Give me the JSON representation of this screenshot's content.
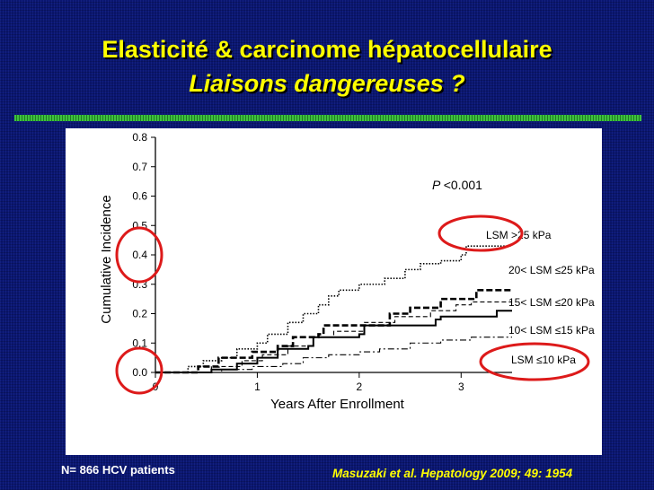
{
  "slide": {
    "title": "Elasticité & carcinome hépatocellulaire",
    "subtitle": "Liaisons dangereuses ?",
    "footer_left": "N= 866 HCV patients",
    "footer_right": "Masuzaki et al. Hepatology 2009; 49: 1954"
  },
  "colors": {
    "title": "#ffff00",
    "highlight_circle": "#dd1a1a",
    "background": "#0a1670"
  },
  "chart_data": {
    "type": "line",
    "xlabel": "Years After Enrollment",
    "ylabel": "Cumulative Incidence",
    "xlim": [
      0,
      3.5
    ],
    "ylim": [
      0,
      0.8
    ],
    "xticks": [
      "0",
      "1",
      "2",
      "3"
    ],
    "yticks": [
      "0.0",
      "0.1",
      "0.2",
      "0.3",
      "0.4",
      "0.5",
      "0.6",
      "0.7",
      "0.8"
    ],
    "annotation_p": "<0.001",
    "annotation_p_symbol": "P",
    "series": [
      {
        "name": "LSM >25 kPa",
        "style": "dotted",
        "points": [
          [
            0,
            0
          ],
          [
            0.3,
            0
          ],
          [
            0.32,
            0.02
          ],
          [
            0.45,
            0.02
          ],
          [
            0.47,
            0.04
          ],
          [
            0.65,
            0.05
          ],
          [
            0.8,
            0.08
          ],
          [
            1.0,
            0.1
          ],
          [
            1.1,
            0.13
          ],
          [
            1.3,
            0.17
          ],
          [
            1.45,
            0.2
          ],
          [
            1.6,
            0.23
          ],
          [
            1.7,
            0.26
          ],
          [
            1.8,
            0.28
          ],
          [
            2.0,
            0.3
          ],
          [
            2.25,
            0.32
          ],
          [
            2.45,
            0.35
          ],
          [
            2.6,
            0.37
          ],
          [
            2.8,
            0.38
          ],
          [
            3.0,
            0.4
          ],
          [
            3.05,
            0.43
          ],
          [
            3.5,
            0.43
          ]
        ]
      },
      {
        "name": "20< LSM ≤25 kPa",
        "style": "dashed",
        "points": [
          [
            0,
            0
          ],
          [
            0.4,
            0
          ],
          [
            0.42,
            0.02
          ],
          [
            0.6,
            0.02
          ],
          [
            0.62,
            0.05
          ],
          [
            0.9,
            0.05
          ],
          [
            0.95,
            0.07
          ],
          [
            1.2,
            0.09
          ],
          [
            1.35,
            0.12
          ],
          [
            1.6,
            0.13
          ],
          [
            1.65,
            0.16
          ],
          [
            2.0,
            0.16
          ],
          [
            2.3,
            0.2
          ],
          [
            2.5,
            0.22
          ],
          [
            2.8,
            0.25
          ],
          [
            3.1,
            0.25
          ],
          [
            3.15,
            0.28
          ],
          [
            3.5,
            0.28
          ]
        ]
      },
      {
        "name": "15< LSM ≤20 kPa",
        "style": "dashed-thin",
        "points": [
          [
            0,
            0
          ],
          [
            0.5,
            0
          ],
          [
            0.55,
            0.02
          ],
          [
            0.85,
            0.04
          ],
          [
            1.05,
            0.06
          ],
          [
            1.3,
            0.09
          ],
          [
            1.55,
            0.12
          ],
          [
            1.75,
            0.14
          ],
          [
            2.05,
            0.17
          ],
          [
            2.35,
            0.19
          ],
          [
            2.7,
            0.21
          ],
          [
            2.95,
            0.23
          ],
          [
            3.1,
            0.24
          ],
          [
            3.5,
            0.24
          ]
        ]
      },
      {
        "name": "10< LSM ≤15 kPa",
        "style": "solid",
        "points": [
          [
            0,
            0
          ],
          [
            0.5,
            0
          ],
          [
            0.55,
            0.01
          ],
          [
            0.8,
            0.03
          ],
          [
            1.0,
            0.05
          ],
          [
            1.15,
            0.05
          ],
          [
            1.2,
            0.08
          ],
          [
            1.5,
            0.09
          ],
          [
            1.55,
            0.12
          ],
          [
            2.0,
            0.13
          ],
          [
            2.05,
            0.16
          ],
          [
            2.75,
            0.18
          ],
          [
            2.8,
            0.19
          ],
          [
            3.3,
            0.19
          ],
          [
            3.35,
            0.21
          ],
          [
            3.5,
            0.21
          ]
        ]
      },
      {
        "name": "LSM ≤10 kPa",
        "style": "dash-dot",
        "points": [
          [
            0,
            0
          ],
          [
            0.6,
            0
          ],
          [
            0.65,
            0.01
          ],
          [
            0.95,
            0.02
          ],
          [
            1.25,
            0.03
          ],
          [
            1.45,
            0.05
          ],
          [
            1.7,
            0.06
          ],
          [
            2.0,
            0.07
          ],
          [
            2.2,
            0.08
          ],
          [
            2.5,
            0.1
          ],
          [
            2.8,
            0.11
          ],
          [
            3.1,
            0.12
          ],
          [
            3.5,
            0.12
          ]
        ]
      }
    ]
  }
}
